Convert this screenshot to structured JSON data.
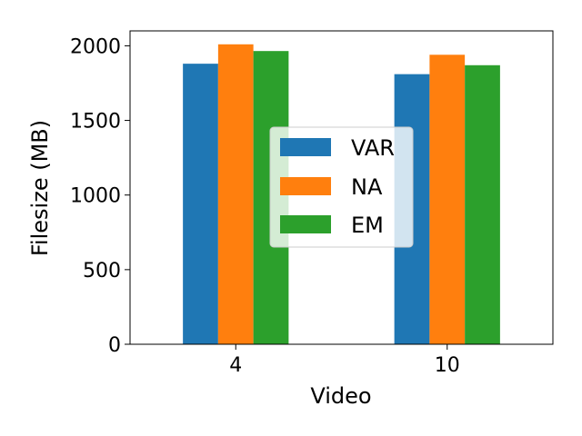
{
  "chart_data": {
    "type": "bar",
    "categories": [
      "4",
      "10"
    ],
    "xlabel": "Video",
    "ylabel": "Filesize (MB)",
    "ylim": [
      0,
      2100
    ],
    "yticks": [
      0,
      500,
      1000,
      1500,
      2000
    ],
    "grid": false,
    "legend_position": "center",
    "series": [
      {
        "name": "VAR",
        "color": "#1f77b4",
        "values": [
          1880,
          1810
        ]
      },
      {
        "name": "NA",
        "color": "#ff7f0e",
        "values": [
          2010,
          1940
        ]
      },
      {
        "name": "EM",
        "color": "#2ca02c",
        "values": [
          1965,
          1870
        ]
      }
    ]
  }
}
